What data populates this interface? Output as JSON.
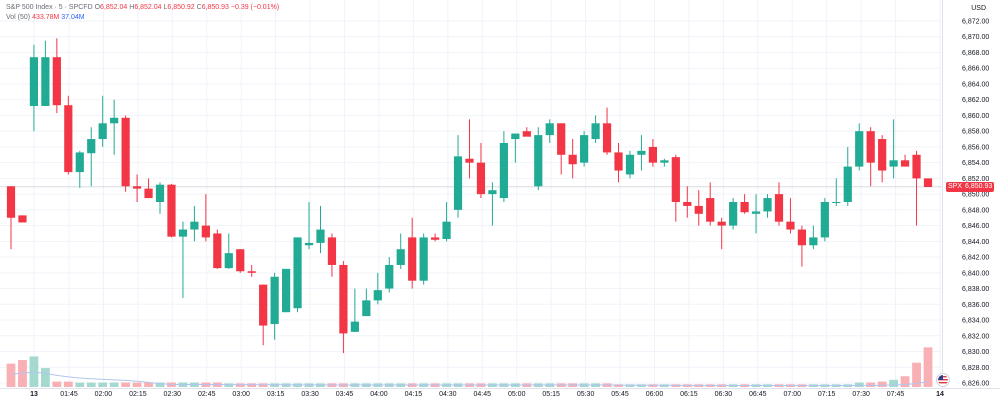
{
  "legend": {
    "symbol": "S&P 500 Index · 5 · SPCFD",
    "open_label": "O",
    "open": "6,852.04",
    "high_label": "H",
    "high": "6,852.04",
    "low_label": "L",
    "low": "6,850.92",
    "close_label": "C",
    "close": "6,850.93",
    "change": "−0.39 (−0.01%)",
    "vol_label": "Vol (50)",
    "vol_value": "433.78M",
    "vol_ma": "37.04M"
  },
  "currency": "USD",
  "last_price": {
    "symbol": "SPX",
    "value": "6,850.93"
  },
  "colors": {
    "up": "#22ab94",
    "down": "#f23645",
    "vol_up": "#a5d9d0",
    "vol_down": "#f8b0b5",
    "grid": "#f0f3fa"
  },
  "chart_data": {
    "type": "candlestick",
    "y_ticks": [
      6826,
      6828,
      6830,
      6832,
      6834,
      6836,
      6838,
      6840,
      6842,
      6844,
      6846,
      6848,
      6850,
      6852,
      6854,
      6856,
      6858,
      6860,
      6862,
      6864,
      6866,
      6868,
      6870,
      6872
    ],
    "ylim": [
      6825.6,
      6873.5
    ],
    "x_tick_labels": [
      "13",
      "01:45",
      "02:00",
      "02:15",
      "02:30",
      "02:45",
      "03:00",
      "03:15",
      "03:30",
      "03:45",
      "04:00",
      "04:15",
      "04:30",
      "04:45",
      "05:00",
      "05:15",
      "05:30",
      "05:45",
      "06:00",
      "06:15",
      "06:30",
      "06:45",
      "07:00",
      "07:15",
      "07:30",
      "07:45",
      "14"
    ],
    "candles": [
      {
        "o": 6851.0,
        "h": 6851.0,
        "l": 6843.0,
        "c": 6847.0
      },
      {
        "o": 6847.3,
        "h": 6847.3,
        "l": 6846.4,
        "c": 6846.4
      },
      {
        "o": 6861.2,
        "h": 6869.0,
        "l": 6858.0,
        "c": 6867.4
      },
      {
        "o": 6861.2,
        "h": 6869.5,
        "l": 6861.2,
        "c": 6867.4
      },
      {
        "o": 6867.4,
        "h": 6869.8,
        "l": 6860.3,
        "c": 6861.3
      },
      {
        "o": 6861.3,
        "h": 6862.5,
        "l": 6852.5,
        "c": 6852.8
      },
      {
        "o": 6852.8,
        "h": 6855.5,
        "l": 6850.8,
        "c": 6855.3
      },
      {
        "o": 6855.2,
        "h": 6858.5,
        "l": 6851.0,
        "c": 6857.0
      },
      {
        "o": 6857.0,
        "h": 6862.5,
        "l": 6856.0,
        "c": 6859.0
      },
      {
        "o": 6859.0,
        "h": 6862.0,
        "l": 6855.0,
        "c": 6859.7
      },
      {
        "o": 6859.7,
        "h": 6860.0,
        "l": 6850.3,
        "c": 6851.0
      },
      {
        "o": 6851.0,
        "h": 6852.5,
        "l": 6849.0,
        "c": 6850.7
      },
      {
        "o": 6850.7,
        "h": 6852.0,
        "l": 6849.5,
        "c": 6849.5
      },
      {
        "o": 6849.0,
        "h": 6851.5,
        "l": 6847.5,
        "c": 6851.2
      },
      {
        "o": 6851.2,
        "h": 6851.3,
        "l": 6844.5,
        "c": 6844.6
      },
      {
        "o": 6844.6,
        "h": 6846.5,
        "l": 6836.8,
        "c": 6845.5
      },
      {
        "o": 6845.5,
        "h": 6848.5,
        "l": 6844.0,
        "c": 6846.5
      },
      {
        "o": 6846.0,
        "h": 6850.0,
        "l": 6844.0,
        "c": 6844.5
      },
      {
        "o": 6845.0,
        "h": 6845.5,
        "l": 6840.5,
        "c": 6840.6
      },
      {
        "o": 6840.6,
        "h": 6845.0,
        "l": 6840.5,
        "c": 6842.5
      },
      {
        "o": 6843.0,
        "h": 6843.0,
        "l": 6840.0,
        "c": 6840.2
      },
      {
        "o": 6840.2,
        "h": 6841.0,
        "l": 6839.5,
        "c": 6840.0
      },
      {
        "o": 6838.5,
        "h": 6838.5,
        "l": 6830.8,
        "c": 6833.3
      },
      {
        "o": 6833.5,
        "h": 6840.0,
        "l": 6831.5,
        "c": 6839.5
      },
      {
        "o": 6835.0,
        "h": 6840.5,
        "l": 6835.0,
        "c": 6840.5
      },
      {
        "o": 6835.5,
        "h": 6844.5,
        "l": 6835.0,
        "c": 6844.5
      },
      {
        "o": 6843.5,
        "h": 6849.0,
        "l": 6843.0,
        "c": 6843.8
      },
      {
        "o": 6843.8,
        "h": 6848.5,
        "l": 6842.5,
        "c": 6845.5
      },
      {
        "o": 6844.5,
        "h": 6845.0,
        "l": 6839.5,
        "c": 6841.0
      },
      {
        "o": 6841.0,
        "h": 6841.5,
        "l": 6829.8,
        "c": 6832.3
      },
      {
        "o": 6832.5,
        "h": 6838.0,
        "l": 6832.5,
        "c": 6833.8
      },
      {
        "o": 6834.5,
        "h": 6838.0,
        "l": 6834.5,
        "c": 6836.5
      },
      {
        "o": 6836.5,
        "h": 6840.0,
        "l": 6836.0,
        "c": 6837.8
      },
      {
        "o": 6838.0,
        "h": 6842.0,
        "l": 6837.5,
        "c": 6841.0
      },
      {
        "o": 6841.0,
        "h": 6845.0,
        "l": 6840.5,
        "c": 6843.0
      },
      {
        "o": 6844.5,
        "h": 6847.0,
        "l": 6838.0,
        "c": 6839.0
      },
      {
        "o": 6839.0,
        "h": 6845.0,
        "l": 6838.5,
        "c": 6844.5
      },
      {
        "o": 6844.5,
        "h": 6845.0,
        "l": 6844.0,
        "c": 6844.2
      },
      {
        "o": 6844.3,
        "h": 6849.0,
        "l": 6844.0,
        "c": 6846.5
      },
      {
        "o": 6848.0,
        "h": 6857.5,
        "l": 6847.0,
        "c": 6854.8
      },
      {
        "o": 6854.5,
        "h": 6859.5,
        "l": 6852.0,
        "c": 6854.0
      },
      {
        "o": 6854.0,
        "h": 6856.5,
        "l": 6849.5,
        "c": 6850.0
      },
      {
        "o": 6850.0,
        "h": 6851.5,
        "l": 6846.0,
        "c": 6850.5
      },
      {
        "o": 6849.5,
        "h": 6858.0,
        "l": 6849.0,
        "c": 6856.5
      },
      {
        "o": 6857.0,
        "h": 6857.5,
        "l": 6854.0,
        "c": 6857.7
      },
      {
        "o": 6858.0,
        "h": 6858.5,
        "l": 6857.5,
        "c": 6857.3
      },
      {
        "o": 6851.0,
        "h": 6858.5,
        "l": 6850.5,
        "c": 6857.5
      },
      {
        "o": 6857.5,
        "h": 6859.5,
        "l": 6856.5,
        "c": 6859.0
      },
      {
        "o": 6859.0,
        "h": 6859.0,
        "l": 6852.5,
        "c": 6855.0
      },
      {
        "o": 6855.0,
        "h": 6857.0,
        "l": 6852.0,
        "c": 6853.8
      },
      {
        "o": 6854.0,
        "h": 6858.0,
        "l": 6853.5,
        "c": 6857.5
      },
      {
        "o": 6857.0,
        "h": 6860.0,
        "l": 6856.5,
        "c": 6859.0
      },
      {
        "o": 6859.0,
        "h": 6861.0,
        "l": 6855.0,
        "c": 6855.3
      },
      {
        "o": 6855.3,
        "h": 6856.5,
        "l": 6851.5,
        "c": 6853.0
      },
      {
        "o": 6852.5,
        "h": 6855.5,
        "l": 6852.0,
        "c": 6855.0
      },
      {
        "o": 6855.0,
        "h": 6857.5,
        "l": 6853.0,
        "c": 6855.5
      },
      {
        "o": 6856.0,
        "h": 6857.0,
        "l": 6853.5,
        "c": 6854.0
      },
      {
        "o": 6854.0,
        "h": 6854.5,
        "l": 6853.5,
        "c": 6854.3
      },
      {
        "o": 6854.7,
        "h": 6855.0,
        "l": 6846.5,
        "c": 6849.0
      },
      {
        "o": 6849.0,
        "h": 6851.0,
        "l": 6847.0,
        "c": 6848.5
      },
      {
        "o": 6848.5,
        "h": 6850.5,
        "l": 6846.0,
        "c": 6847.5
      },
      {
        "o": 6849.5,
        "h": 6851.5,
        "l": 6846.0,
        "c": 6846.5
      },
      {
        "o": 6846.5,
        "h": 6847.0,
        "l": 6843.0,
        "c": 6846.0
      },
      {
        "o": 6846.0,
        "h": 6849.5,
        "l": 6845.5,
        "c": 6849.0
      },
      {
        "o": 6849.0,
        "h": 6850.0,
        "l": 6847.5,
        "c": 6847.7
      },
      {
        "o": 6847.5,
        "h": 6850.0,
        "l": 6845.0,
        "c": 6847.8
      },
      {
        "o": 6847.8,
        "h": 6850.0,
        "l": 6847.0,
        "c": 6849.5
      },
      {
        "o": 6850.0,
        "h": 6851.5,
        "l": 6846.0,
        "c": 6846.5
      },
      {
        "o": 6846.5,
        "h": 6849.5,
        "l": 6845.0,
        "c": 6845.5
      },
      {
        "o": 6845.5,
        "h": 6846.0,
        "l": 6840.8,
        "c": 6843.5
      },
      {
        "o": 6843.5,
        "h": 6846.0,
        "l": 6843.0,
        "c": 6844.5
      },
      {
        "o": 6844.5,
        "h": 6849.5,
        "l": 6844.0,
        "c": 6849.0
      },
      {
        "o": 6849.0,
        "h": 6852.0,
        "l": 6848.5,
        "c": 6849.0
      },
      {
        "o": 6849.0,
        "h": 6856.0,
        "l": 6848.5,
        "c": 6853.5
      },
      {
        "o": 6853.5,
        "h": 6859.0,
        "l": 6853.0,
        "c": 6858.0
      },
      {
        "o": 6858.0,
        "h": 6858.5,
        "l": 6851.0,
        "c": 6854.0
      },
      {
        "o": 6857.0,
        "h": 6857.5,
        "l": 6851.5,
        "c": 6853.0
      },
      {
        "o": 6853.5,
        "h": 6859.5,
        "l": 6852.0,
        "c": 6854.3
      },
      {
        "o": 6854.3,
        "h": 6855.0,
        "l": 6853.5,
        "c": 6853.5
      },
      {
        "o": 6855.0,
        "h": 6855.5,
        "l": 6846.0,
        "c": 6852.0
      },
      {
        "o": 6852.0,
        "h": 6852.0,
        "l": 6850.9,
        "c": 6850.9
      }
    ],
    "volume": [
      26,
      30,
      34,
      21,
      6,
      6,
      5,
      5,
      5,
      5,
      5,
      5,
      5,
      5,
      5,
      5,
      5,
      5,
      5,
      4,
      4,
      4,
      4,
      4,
      4,
      4,
      4,
      4,
      4,
      4,
      4,
      4,
      4,
      4,
      4,
      4,
      4,
      4,
      4,
      4,
      4,
      4,
      4,
      4,
      4,
      4,
      4,
      4,
      4,
      4,
      4,
      4,
      4,
      3,
      3,
      3,
      3,
      3,
      3,
      3,
      3,
      3,
      3,
      3,
      3,
      3,
      3,
      3,
      3,
      3,
      3,
      3,
      3,
      3,
      5,
      5,
      6,
      8,
      12,
      27,
      44
    ],
    "ylabel": "",
    "xlabel": ""
  }
}
